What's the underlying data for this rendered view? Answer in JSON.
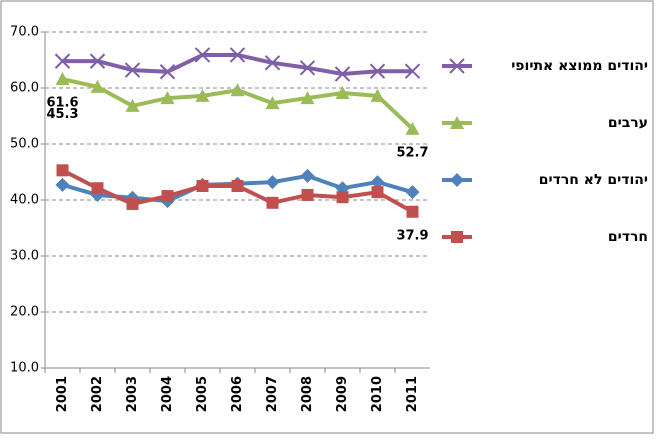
{
  "chart_data": {
    "type": "line",
    "categories": [
      "2001",
      "2002",
      "2003",
      "2004",
      "2005",
      "2006",
      "2007",
      "2008",
      "2009",
      "2010",
      "2011"
    ],
    "ylim": [
      10,
      70
    ],
    "yticks": [
      {
        "value": 10,
        "label": "10.0"
      },
      {
        "value": 20,
        "label": "20.0"
      },
      {
        "value": 30,
        "label": "30.0"
      },
      {
        "value": 40,
        "label": "40.0"
      },
      {
        "value": 50,
        "label": "50.0"
      },
      {
        "value": 60,
        "label": "60.0"
      },
      {
        "value": 70,
        "label": "70.0"
      }
    ],
    "grid": true,
    "legend": "right",
    "series": [
      {
        "name": "יהודים ממוצא אתיופי",
        "color": "#7f5fa8",
        "marker": "x",
        "values": [
          64.8,
          64.8,
          63.2,
          62.9,
          65.9,
          65.9,
          64.5,
          63.6,
          62.5,
          63.0,
          63.0
        ]
      },
      {
        "name": "ערבים",
        "color": "#9bbb59",
        "marker": "triangle",
        "values": [
          61.6,
          60.2,
          56.8,
          58.2,
          58.6,
          59.6,
          57.3,
          58.2,
          59.1,
          58.6,
          52.7
        ],
        "value_labels": [
          "61.6",
          null,
          null,
          null,
          null,
          null,
          null,
          null,
          null,
          null,
          "52.7"
        ]
      },
      {
        "name": "יהודים לא חרדים",
        "color": "#4f81bd",
        "marker": "diamond",
        "values": [
          42.7,
          40.9,
          40.4,
          39.8,
          42.7,
          42.9,
          43.2,
          44.3,
          42.1,
          43.2,
          41.4
        ]
      },
      {
        "name": "חרדים",
        "color": "#c0504d",
        "marker": "square",
        "values": [
          45.3,
          42.1,
          39.3,
          40.7,
          42.5,
          42.5,
          39.5,
          40.9,
          40.5,
          41.4,
          37.9
        ],
        "value_labels": [
          "45.3",
          null,
          null,
          null,
          null,
          null,
          null,
          null,
          null,
          null,
          "37.9"
        ]
      }
    ]
  }
}
